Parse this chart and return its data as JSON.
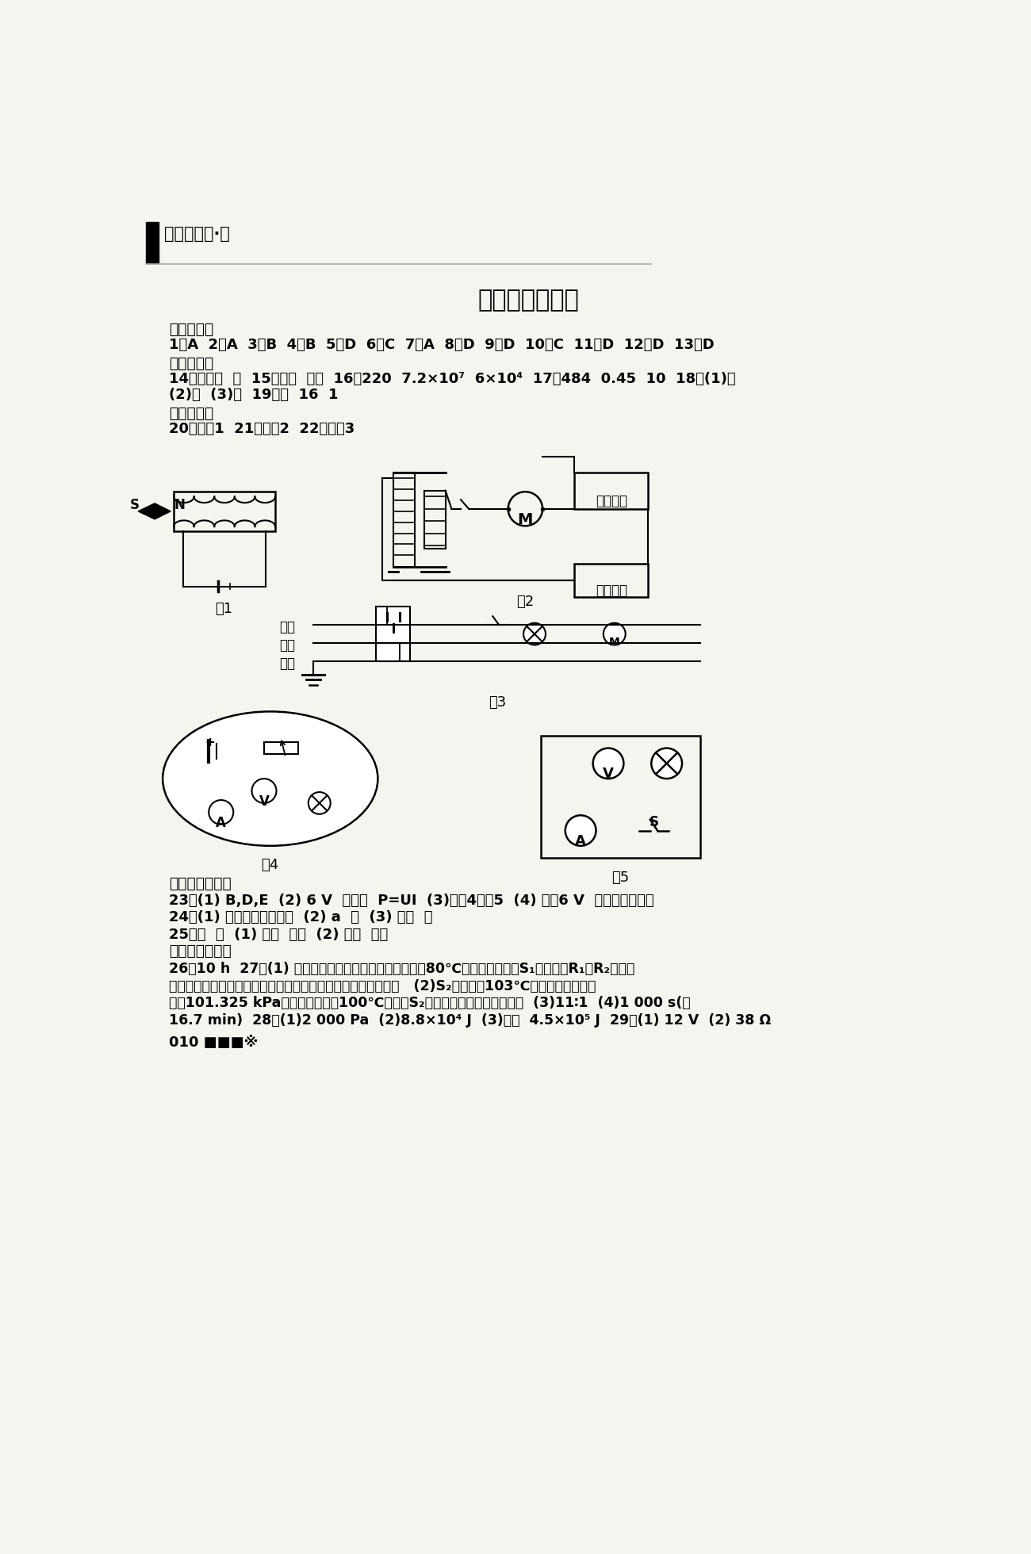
{
  "bg_color": "#f5f5f0",
  "header_text": "九年级物理·下",
  "title": "期中测试（一）",
  "section1": "一、选择题",
  "answers1": "1．A  2．A  3．B  4．B  5．D  6．C  7．A  8．D  9．D  10．C  11．D  12．D  13．D",
  "section2": "二、填空题",
  "answers2a": "14．测电笔  火  15．排斥  阻力  16．220  7.2×10⁷  6×10⁴  17．484  0.45  10  18．(1)乙",
  "answers2b": "(2)乙  (3)甲  19．串  16  1",
  "section3": "三、作图题",
  "answers3": "20．见图1  21．见图2  22．见图3",
  "fig1_label": "图1",
  "fig2_label": "图2",
  "fig3_label": "图3",
  "fig4_label": "图4",
  "fig5_label": "图5",
  "section4": "四、实验与探究",
  "answers4a": "23．(1) B,D,E  (2) 6 V  电流表  P=UI  (3)见图4、图5  (4) 小于6 V  将滑片向左滑动",
  "answers4b": "24．(1) 吸引大头针的多少  (2) a  大  (3) 电流  多",
  "answers4c": "25．电  内  (1) 电阻  热量  (2) 电流  热量",
  "section5": "五、计算与应用",
  "answers5a": "26．10 h  27．(1) 不能；因为自动温控开关在温度达到80℃会自动断开，如S₁也断开，R₁与R₂将串联",
  "answers5b": "接入电路，电路中电流较小，处于保温状态，故不能将饭煮熟。   (2)S₂在温度达103℃时才会自动断开，",
  "answers5c": "而在101.325 kPa下，水的沸点为100℃，所以S₂的自动断电功能不起作用。  (3)11∶1  (4)1 000 s(或",
  "answers5d": "16.7 min)  28．(1)2 000 Pa  (2)8.8×10⁴ J  (3)汽化  4.5×10⁵ J  29．(1) 12 V  (2) 38 Ω",
  "footer": "010 ■■■※"
}
